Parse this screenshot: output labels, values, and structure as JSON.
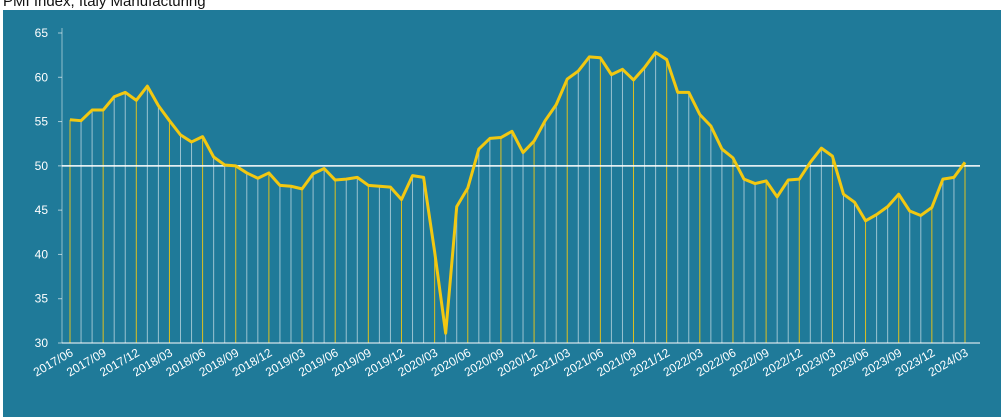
{
  "chart_data": {
    "type": "line",
    "title": "PMI Index, Italy Manufacturing",
    "categories": [
      "2017/06",
      null,
      null,
      "2017/09",
      null,
      null,
      "2017/12",
      null,
      null,
      "2018/03",
      null,
      null,
      "2018/06",
      null,
      null,
      "2018/09",
      null,
      null,
      "2018/12",
      null,
      null,
      "2019/03",
      null,
      null,
      "2019/06",
      null,
      null,
      "2019/09",
      null,
      null,
      "2019/12",
      null,
      null,
      "2020/03",
      null,
      null,
      "2020/06",
      null,
      null,
      "2020/09",
      null,
      null,
      "2020/12",
      null,
      null,
      "2021/03",
      null,
      null,
      "2021/06",
      null,
      null,
      "2021/09",
      null,
      null,
      "2021/12",
      null,
      null,
      "2022/03",
      null,
      null,
      "2022/06",
      null,
      null,
      "2022/09",
      null,
      null,
      "2022/12",
      null,
      null,
      "2023/03",
      null,
      null,
      "2023/06",
      null,
      null,
      "2023/09",
      null,
      null,
      "2023/12",
      null,
      null,
      "2024/03"
    ],
    "values": [
      55.2,
      55.1,
      56.3,
      56.3,
      57.8,
      58.3,
      57.4,
      59.0,
      56.8,
      55.1,
      53.5,
      52.7,
      53.3,
      51.0,
      50.1,
      50.0,
      49.2,
      48.6,
      49.2,
      47.8,
      47.7,
      47.4,
      49.1,
      49.7,
      48.4,
      48.5,
      48.7,
      47.8,
      47.7,
      47.6,
      46.2,
      48.9,
      48.7,
      40.3,
      31.1,
      45.4,
      47.5,
      51.9,
      53.1,
      53.2,
      53.9,
      51.5,
      52.8,
      55.1,
      56.9,
      59.8,
      60.7,
      62.3,
      62.2,
      60.3,
      60.9,
      59.7,
      61.1,
      62.8,
      62.0,
      58.3,
      58.3,
      55.8,
      54.5,
      51.9,
      50.9,
      48.5,
      48.0,
      48.3,
      46.5,
      48.4,
      48.5,
      50.4,
      52.0,
      51.1,
      46.8,
      45.9,
      43.8,
      44.5,
      45.4,
      46.8,
      44.9,
      44.4,
      45.3,
      48.5,
      48.7,
      50.4
    ],
    "color": "#f2c811",
    "ylim": [
      30,
      65
    ],
    "yticks": [
      30,
      35,
      40,
      45,
      50,
      55,
      60,
      65
    ],
    "reference_line": 50
  }
}
